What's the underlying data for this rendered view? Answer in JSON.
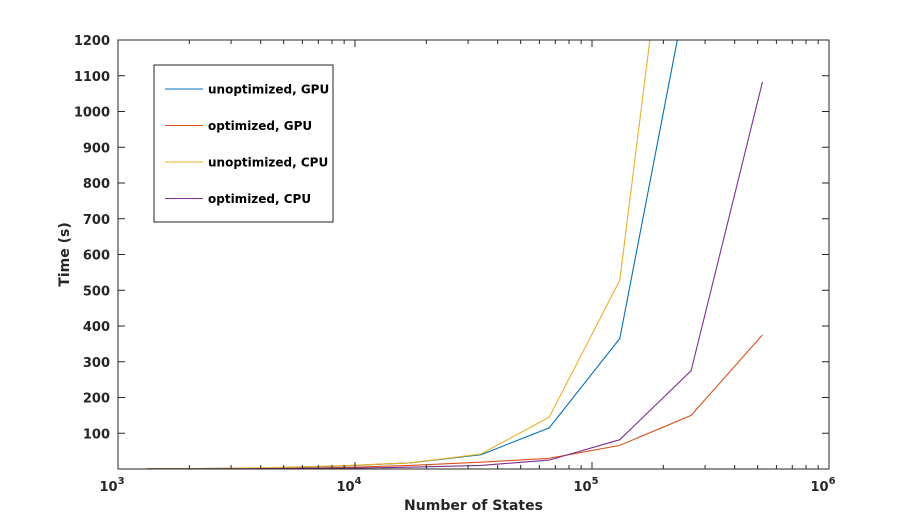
{
  "chart_data": {
    "type": "line",
    "xlabel": "Number of States",
    "ylabel": "Time (s)",
    "xscale": "log",
    "xlim": [
      1000,
      1000000
    ],
    "ylim": [
      0,
      1200
    ],
    "xtick_labels": [
      {
        "base": "10",
        "exp": "3",
        "value": 1000
      },
      {
        "base": "10",
        "exp": "4",
        "value": 10000
      },
      {
        "base": "10",
        "exp": "5",
        "value": 100000
      },
      {
        "base": "10",
        "exp": "6",
        "value": 1000000
      }
    ],
    "yticks": [
      100,
      200,
      300,
      400,
      500,
      600,
      700,
      800,
      900,
      1000,
      1100,
      1200
    ],
    "grid": false,
    "legend_position": "top-left",
    "series": [
      {
        "name": "unoptimized, GPU",
        "color": "#0072BD",
        "x": [
          1320,
          2200,
          4300,
          8600,
          17000,
          34000,
          66000,
          131000,
          262000
        ],
        "y": [
          0.5,
          1,
          3,
          8,
          17,
          40,
          115,
          365,
          1400
        ]
      },
      {
        "name": "optimized, GPU",
        "color": "#D95319",
        "x": [
          1320,
          2200,
          4300,
          8600,
          17000,
          34000,
          66000,
          131000,
          262000,
          524000
        ],
        "y": [
          0.3,
          0.6,
          1.5,
          4,
          10,
          19,
          30,
          66,
          150,
          375
        ]
      },
      {
        "name": "unoptimized, CPU",
        "color": "#EDB120",
        "x": [
          1320,
          2200,
          4300,
          8600,
          17000,
          34000,
          66000,
          131000,
          200000
        ],
        "y": [
          0.6,
          1.2,
          3.5,
          9,
          17,
          42,
          145,
          528,
          1500
        ]
      },
      {
        "name": "optimized, CPU",
        "color": "#7E2F8E",
        "x": [
          1320,
          2200,
          4300,
          8600,
          17000,
          34000,
          66000,
          131000,
          262000,
          524000
        ],
        "y": [
          0.2,
          0.5,
          1,
          2,
          5,
          10,
          25,
          82,
          275,
          1083
        ]
      }
    ]
  }
}
